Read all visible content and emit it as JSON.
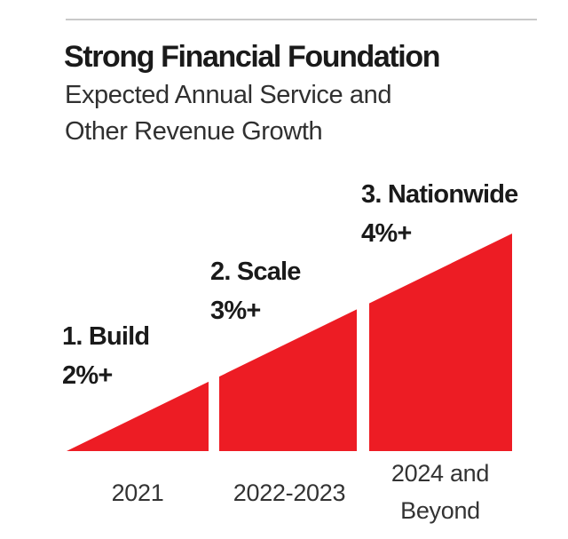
{
  "header": {
    "title": "Strong Financial Foundation",
    "subtitle_lines": [
      "Expected Annual Service and",
      "Other Revenue Growth"
    ]
  },
  "chart_data": {
    "type": "area",
    "title": "Strong Financial Foundation",
    "subtitle": "Expected Annual Service and Other Revenue Growth",
    "categories": [
      "2021",
      "2022-2023",
      "2024 and Beyond"
    ],
    "series": [
      {
        "name": "Expected annual service and other revenue growth",
        "values": [
          2,
          3,
          4
        ],
        "unit": "%+ (minimum annual growth)"
      }
    ],
    "segments": [
      {
        "phase": "1. Build",
        "value_label": "2%+",
        "value_pct_min": 2,
        "category_lines": [
          "2021"
        ]
      },
      {
        "phase": "2. Scale",
        "value_label": "3%+",
        "value_pct_min": 3,
        "category_lines": [
          "2022-2023"
        ]
      },
      {
        "phase": "3. Nationwide",
        "value_label": "4%+",
        "value_pct_min": 4,
        "category_lines": [
          "2024 and",
          "Beyond"
        ]
      }
    ],
    "legend": "none",
    "axes": "none — stylized continuous rising wedge split into three slices, height increases left to right",
    "colors": {
      "wedge": "#ED1C24",
      "title_text": "#1a1a1a",
      "body_text": "#333333",
      "rule": "#c9c9c9"
    }
  }
}
